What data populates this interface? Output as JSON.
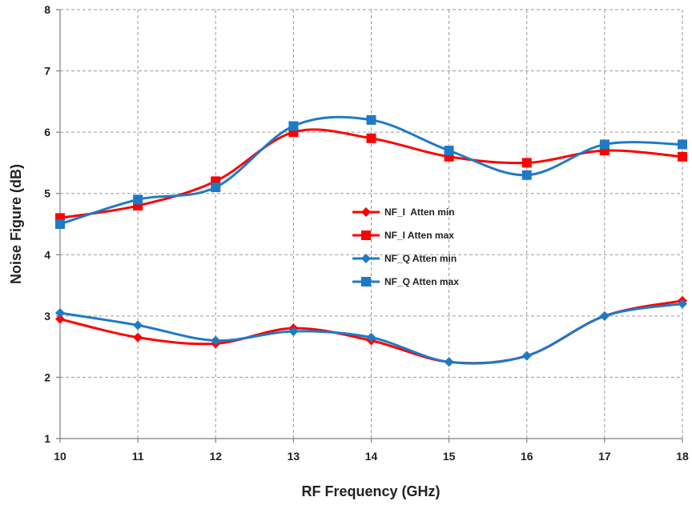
{
  "chart_data": {
    "type": "line",
    "title": "",
    "xlabel": "RF Frequency (GHz)",
    "ylabel": "Noise Figure (dB)",
    "x": [
      10,
      11,
      12,
      13,
      14,
      15,
      16,
      17,
      18
    ],
    "xlim": [
      10,
      18
    ],
    "ylim": [
      1,
      8
    ],
    "xticks": [
      "10",
      "11",
      "12",
      "13",
      "14",
      "15",
      "16",
      "17",
      "18"
    ],
    "yticks": [
      "1",
      "2",
      "3",
      "4",
      "5",
      "6",
      "7",
      "8"
    ],
    "grid": true,
    "legend_position": "center",
    "smooth": true,
    "series": [
      {
        "name": "NF_I  Atten min",
        "color": "#ff0000",
        "marker": "diamond",
        "values": [
          2.95,
          2.65,
          2.55,
          2.8,
          2.6,
          2.25,
          2.35,
          3.0,
          3.25
        ]
      },
      {
        "name": "NF_I Atten max",
        "color": "#ff0000",
        "marker": "square",
        "values": [
          4.6,
          4.8,
          5.2,
          6.0,
          5.9,
          5.6,
          5.5,
          5.7,
          5.6
        ]
      },
      {
        "name": "NF_Q Atten min",
        "color": "#1f7ac6",
        "marker": "diamond",
        "values": [
          3.05,
          2.85,
          2.6,
          2.75,
          2.65,
          2.25,
          2.35,
          3.0,
          3.2
        ]
      },
      {
        "name": "NF_Q Atten max",
        "color": "#1f7ac6",
        "marker": "square",
        "values": [
          4.5,
          4.9,
          5.1,
          6.1,
          6.2,
          5.7,
          5.3,
          5.8,
          5.8
        ]
      }
    ]
  }
}
